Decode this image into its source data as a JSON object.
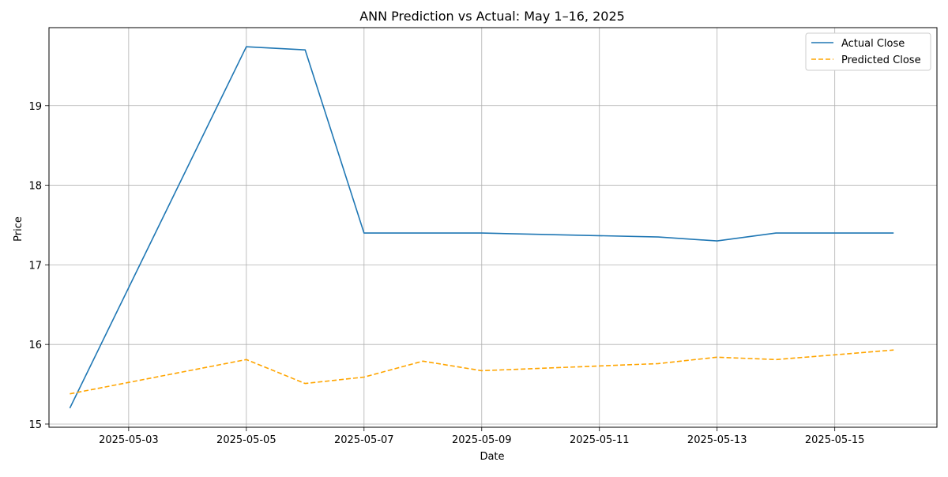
{
  "chart_data": {
    "type": "line",
    "title": "ANN Prediction vs Actual: May 1–16, 2025",
    "xlabel": "Date",
    "ylabel": "Price",
    "x": [
      "2025-05-02",
      "2025-05-05",
      "2025-05-06",
      "2025-05-07",
      "2025-05-08",
      "2025-05-09",
      "2025-05-12",
      "2025-05-13",
      "2025-05-14",
      "2025-05-15",
      "2025-05-16"
    ],
    "xlim": [
      "2025-05-01T15:30",
      "2025-05-16T17:40"
    ],
    "ylim": [
      14.96,
      19.98
    ],
    "x_ticks": [
      "2025-05-03",
      "2025-05-05",
      "2025-05-07",
      "2025-05-09",
      "2025-05-11",
      "2025-05-13",
      "2025-05-15"
    ],
    "y_ticks": [
      15,
      16,
      17,
      18,
      19
    ],
    "grid": true,
    "legend_position": "top-right",
    "series": [
      {
        "name": "Actual Close",
        "color": "#1f77b4",
        "dash": "solid",
        "values": [
          15.2,
          19.74,
          19.7,
          17.4,
          17.4,
          17.4,
          17.35,
          17.3,
          17.4,
          17.4,
          17.4
        ]
      },
      {
        "name": "Predicted Close",
        "color": "#ffa500",
        "dash": "dashed",
        "values": [
          15.38,
          15.81,
          15.51,
          15.59,
          15.79,
          15.67,
          15.76,
          15.84,
          15.81,
          15.87,
          15.93
        ]
      }
    ]
  }
}
